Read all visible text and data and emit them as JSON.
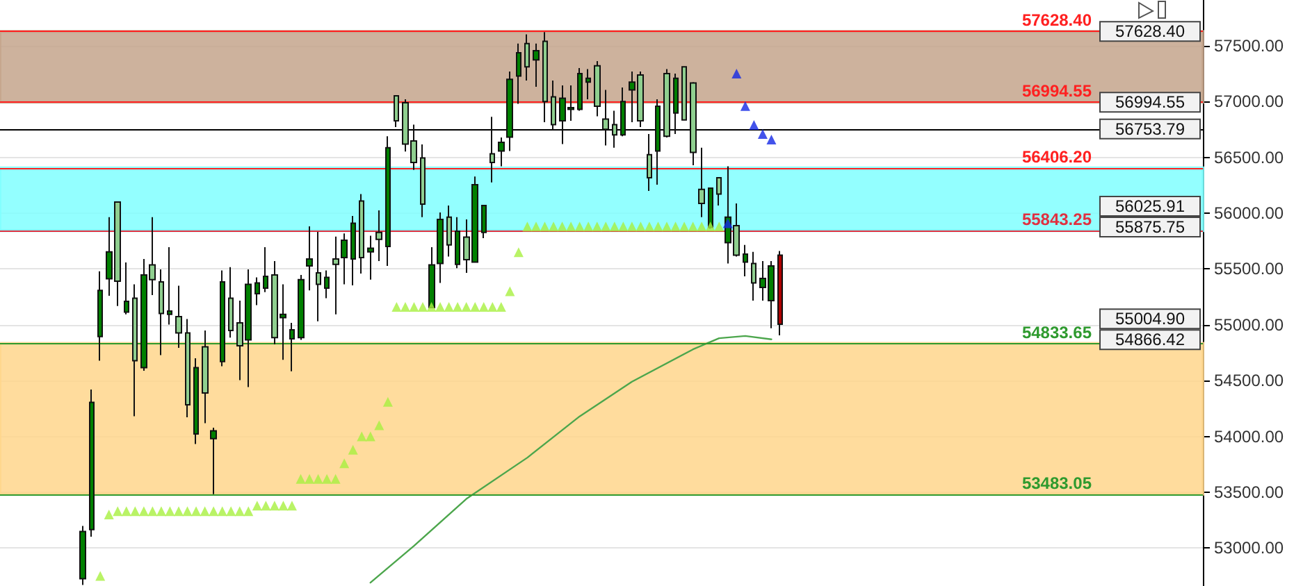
{
  "chart_data": {
    "type": "candlestick",
    "categories": [
      null,
      null,
      null,
      null,
      null,
      null,
      null,
      null,
      null,
      null,
      null,
      null,
      null,
      null,
      null,
      null,
      null,
      null,
      null,
      null,
      null,
      null,
      null,
      null,
      null,
      null,
      null,
      null,
      null,
      null,
      null,
      null,
      null,
      null,
      null,
      null,
      null,
      null,
      null,
      null,
      null,
      null,
      null,
      null,
      null,
      null,
      null,
      null,
      null,
      null,
      null,
      null,
      null,
      null,
      null,
      null,
      null,
      null,
      null,
      null,
      null,
      null,
      null,
      null,
      null,
      null,
      null,
      null,
      null,
      null,
      null,
      null,
      null,
      null,
      null,
      null,
      null,
      null,
      null,
      null,
      null,
      null,
      null,
      null,
      null,
      null,
      null,
      null,
      null,
      null,
      null,
      null,
      null,
      null,
      null,
      null,
      null,
      null,
      null,
      null,
      null,
      null,
      null,
      null,
      null,
      null,
      null,
      null,
      null,
      null,
      null,
      null,
      null,
      null,
      null,
      null,
      null,
      null,
      null,
      null,
      null,
      null,
      null,
      null,
      null,
      null,
      null,
      null,
      null,
      null,
      null,
      null,
      null,
      null,
      null,
      null,
      null,
      null
    ],
    "ohlc": [
      null,
      null,
      null,
      null,
      null,
      null,
      null,
      null,
      null,
      [
        52726,
        53198,
        52670,
        53148
      ],
      [
        53165,
        54421,
        53102,
        54305
      ],
      [
        54894,
        55479,
        54679,
        55309
      ],
      [
        55413,
        55964,
        55260,
        55653
      ],
      [
        56100,
        56100,
        55168,
        55391
      ],
      [
        55114,
        55558,
        55093,
        55210
      ],
      [
        55238,
        55363,
        54181,
        54679
      ],
      [
        54616,
        55590,
        54588,
        55446
      ],
      [
        55537,
        55964,
        55267,
        55404
      ],
      [
        55384,
        55496,
        54728,
        55102
      ],
      [
        55093,
        55695,
        55002,
        55123
      ],
      [
        55073,
        55350,
        54794,
        54927
      ],
      [
        54927,
        55052,
        54172,
        54284
      ],
      [
        54023,
        54700,
        53932,
        54616
      ],
      [
        54803,
        54949,
        54119,
        54389
      ],
      [
        53980,
        54078,
        53483,
        54050
      ],
      [
        54670,
        55487,
        54629,
        55384
      ],
      [
        55238,
        55516,
        54886,
        54949
      ],
      [
        55018,
        55217,
        54504,
        54812
      ],
      [
        54865,
        55496,
        54442,
        55363
      ],
      [
        55279,
        55425,
        55176,
        55375
      ],
      [
        55329,
        55695,
        55292,
        55434
      ],
      [
        55446,
        55571,
        54824,
        54886
      ],
      [
        55064,
        55363,
        54687,
        55093
      ],
      [
        54874,
        55018,
        54583,
        54956
      ],
      [
        54886,
        55446,
        54865,
        55404
      ],
      [
        55528,
        55882,
        55309,
        55590
      ],
      [
        55466,
        55832,
        55031,
        55363
      ],
      [
        55329,
        55487,
        55238,
        55425
      ],
      [
        55590,
        55790,
        55093,
        55541
      ],
      [
        55603,
        55819,
        55363,
        55757
      ],
      [
        55590,
        55976,
        55354,
        55910
      ],
      [
        56109,
        56171,
        55459,
        55603
      ],
      [
        55653,
        55798,
        55404,
        55686
      ],
      [
        55827,
        56026,
        55571,
        55765
      ],
      [
        55702,
        56690,
        55528,
        56586
      ],
      [
        57051,
        57051,
        56772,
        56827
      ],
      [
        56989,
        57021,
        56553,
        56619
      ],
      [
        56648,
        56793,
        56387,
        56454
      ],
      [
        56495,
        56616,
        55964,
        56081
      ],
      [
        55155,
        55695,
        55155,
        55537
      ],
      [
        55549,
        56006,
        55375,
        55944
      ],
      [
        55964,
        56068,
        55612,
        55715
      ],
      [
        55541,
        55964,
        55508,
        55839
      ],
      [
        55786,
        55944,
        55466,
        55583
      ],
      [
        55562,
        56329,
        55562,
        56255
      ],
      [
        55827,
        56068,
        55777,
        56068
      ],
      [
        56532,
        56864,
        56275,
        56454
      ],
      [
        56557,
        56678,
        56420,
        56635
      ],
      [
        56681,
        57270,
        56557,
        57200
      ],
      [
        57229,
        57519,
        56980,
        57437
      ],
      [
        57519,
        57602,
        57188,
        57312
      ],
      [
        57374,
        57519,
        57133,
        57456
      ],
      [
        57540,
        57623,
        56815,
        57001
      ],
      [
        57042,
        57188,
        56752,
        56793
      ],
      [
        56827,
        57145,
        56619,
        57030
      ],
      [
        56930,
        57145,
        56827,
        56946
      ],
      [
        56930,
        57300,
        56918,
        57250
      ],
      [
        57175,
        57291,
        57021,
        57208
      ],
      [
        57320,
        57362,
        56868,
        56959
      ],
      [
        56843,
        57104,
        56607,
        56752
      ],
      [
        56793,
        56918,
        56586,
        56702
      ],
      [
        56702,
        57126,
        56690,
        57001
      ],
      [
        57104,
        57270,
        56815,
        57175
      ],
      [
        57238,
        57270,
        56772,
        56827
      ],
      [
        56524,
        56710,
        56200,
        56317
      ],
      [
        56557,
        57021,
        56255,
        56959
      ],
      [
        57250,
        57291,
        56678,
        56690
      ],
      [
        56897,
        57250,
        56710,
        57208
      ],
      [
        57312,
        57312,
        56835,
        56835
      ],
      [
        57167,
        57175,
        56429,
        56545
      ],
      [
        56213,
        56586,
        55964,
        56088
      ],
      [
        55873,
        56225,
        55860,
        56225
      ],
      [
        56317,
        56317,
        56068,
        56171
      ],
      [
        55736,
        56420,
        55549,
        55964
      ],
      [
        55889,
        56088,
        55612,
        55624
      ],
      [
        55562,
        55715,
        55434,
        55633
      ],
      [
        55549,
        55653,
        55217,
        55375
      ],
      [
        55334,
        55571,
        55217,
        55416
      ],
      [
        55217,
        55571,
        54969,
        55528
      ],
      [
        55624,
        55661,
        54906,
        55004.9
      ],
      null,
      null,
      null,
      null,
      null,
      null,
      null,
      null,
      null,
      null,
      null,
      null,
      null,
      null,
      null,
      null,
      null,
      null,
      null,
      null,
      null,
      null,
      null,
      null,
      null,
      null,
      null,
      null,
      null,
      null,
      null,
      null,
      null,
      null,
      null,
      null,
      null,
      null,
      null,
      null,
      null,
      null,
      null,
      null,
      null,
      null,
      null,
      null
    ],
    "colors": [
      null,
      null,
      null,
      null,
      null,
      null,
      null,
      null,
      null,
      "#008000",
      "#008000",
      "#008000",
      "#008000",
      "#8fcf8f",
      "#008000",
      "#8fcf8f",
      "#008000",
      "#8fcf8f",
      "#8fcf8f",
      "#008000",
      "#8fcf8f",
      "#8fcf8f",
      "#008000",
      "#8fcf8f",
      "#008000",
      "#008000",
      "#8fcf8f",
      "#8fcf8f",
      "#008000",
      "#008000",
      "#008000",
      "#8fcf8f",
      "#008000",
      "#008000",
      "#008000",
      "#008000",
      "#8fcf8f",
      "#008000",
      "#8fcf8f",
      "#008000",
      "#008000",
      "#8fcf8f",
      "#008000",
      "#8fcf8f",
      "#008000",
      "#8fcf8f",
      "#8fcf8f",
      "#8fcf8f",
      "#8fcf8f",
      "#008000",
      "#008000",
      "#8fcf8f",
      "#008000",
      "#8fcf8f",
      "#008000",
      "#008000",
      "#8fcf8f",
      "#008000",
      "#008000",
      "#008000",
      "#8fcf8f",
      "#008000",
      "#8fcf8f",
      "#8fcf8f",
      "#008000",
      "#008000",
      "#008000",
      "#008000",
      "#8fcf8f",
      "#8fcf8f",
      "#8fcf8f",
      "#008000",
      "#008000",
      "#8fcf8f",
      "#8fcf8f",
      "#008000",
      "#8fcf8f",
      "#008000",
      "#8fcf8f",
      "#8fcf8f",
      "#8fcf8f",
      "#008000",
      "#8fcf8f",
      "#008000",
      "#8fcf8f",
      "#008000",
      "#8fcf8f",
      "#008000",
      "#008000",
      "#b00000",
      null,
      null,
      null,
      null,
      null,
      null,
      null,
      null,
      null,
      null,
      null,
      null,
      null,
      null,
      null,
      null,
      null,
      null,
      null,
      null,
      null,
      null,
      null,
      null,
      null,
      null,
      null,
      null,
      null,
      null,
      null,
      null,
      null,
      null,
      null,
      null,
      null,
      null,
      null,
      null,
      null,
      null,
      null,
      null,
      null,
      null,
      null,
      null
    ],
    "series": [
      {
        "type": "scatter",
        "color": "#a8f040",
        "marker": "triangle",
        "values": [
          null,
          null,
          null,
          null,
          null,
          null,
          null,
          null,
          null,
          null,
          null,
          52750,
          53300,
          53330,
          53330,
          53330,
          53330,
          53330,
          53330,
          53330,
          53330,
          53330,
          53330,
          53330,
          53330,
          53330,
          53330,
          53330,
          53330,
          53380,
          53380,
          53380,
          53380,
          53380,
          53620,
          53620,
          53620,
          53620,
          53620,
          53760,
          53880,
          54000,
          54000,
          54100,
          54310,
          55160,
          55160,
          55160,
          55160,
          55160,
          55160,
          55160,
          55160,
          55160,
          55160,
          55160,
          55160,
          55160,
          55300,
          55650,
          55880,
          55880,
          55880,
          55880,
          55880,
          55880,
          55880,
          55880,
          55880,
          55880,
          55880,
          55880,
          55880,
          55880,
          55880,
          55880,
          55880,
          55880,
          55880,
          55880,
          55880,
          55880,
          55880,
          null,
          null,
          null,
          null,
          null,
          null,
          null,
          null,
          null,
          null,
          null,
          null,
          null,
          null,
          null,
          null,
          null,
          null,
          null,
          null,
          null,
          null,
          null,
          null,
          null,
          null,
          null,
          null,
          null,
          null,
          null,
          null,
          null,
          null,
          null,
          null,
          null,
          null,
          null,
          null,
          null,
          null,
          null,
          null,
          null,
          null,
          null,
          null,
          null,
          null,
          null,
          null,
          null,
          null,
          null
        ]
      },
      {
        "type": "scatter",
        "color": "#1428e6",
        "marker": "triangle",
        "values": [
          null,
          null,
          null,
          null,
          null,
          null,
          null,
          null,
          null,
          null,
          null,
          null,
          null,
          null,
          null,
          null,
          null,
          null,
          null,
          null,
          null,
          null,
          null,
          null,
          null,
          null,
          null,
          null,
          null,
          null,
          null,
          null,
          null,
          null,
          null,
          null,
          null,
          null,
          null,
          null,
          null,
          null,
          null,
          null,
          null,
          null,
          null,
          null,
          null,
          null,
          null,
          null,
          null,
          null,
          null,
          null,
          null,
          null,
          null,
          null,
          null,
          null,
          null,
          null,
          null,
          null,
          null,
          null,
          null,
          null,
          null,
          null,
          null,
          null,
          null,
          null,
          null,
          null,
          null,
          null,
          null,
          null,
          null,
          55910,
          57250,
          56960,
          56790,
          56710,
          56660,
          null,
          null,
          null,
          null,
          null,
          null,
          null,
          null,
          null,
          null,
          null,
          null,
          null,
          null,
          null,
          null,
          null,
          null,
          null,
          null,
          null,
          null,
          null,
          null,
          null,
          null,
          null,
          null,
          null,
          null,
          null,
          null,
          null,
          null,
          null,
          null,
          null,
          null,
          null,
          null,
          null,
          null,
          null,
          null,
          null,
          null,
          null,
          null,
          null
        ]
      },
      {
        "type": "line",
        "color": "#4ca64c",
        "marker": "none",
        "values": [
          null,
          null,
          null,
          null,
          null,
          null,
          null,
          null,
          null,
          null,
          null,
          null,
          null,
          null,
          null,
          null,
          null,
          null,
          null,
          null,
          null,
          null,
          null,
          null,
          null,
          null,
          null,
          null,
          null,
          null,
          null,
          null,
          null,
          null,
          null,
          null,
          null,
          null,
          null,
          null,
          null,
          null,
          52690,
          null,
          null,
          null,
          null,
          53020,
          null,
          null,
          null,
          null,
          null,
          53440,
          null,
          null,
          null,
          null,
          null,
          null,
          53810,
          null,
          null,
          null,
          null,
          null,
          54180,
          null,
          null,
          null,
          null,
          null,
          54490,
          null,
          null,
          null,
          null,
          null,
          null,
          54780,
          null,
          null,
          54880,
          null,
          null,
          54900,
          null,
          null,
          54870,
          null,
          null,
          null,
          null,
          null,
          null,
          null,
          null,
          null,
          null,
          null,
          null,
          null,
          null,
          null,
          null,
          null,
          null,
          null,
          null,
          null,
          null,
          null,
          null,
          null,
          null,
          null,
          null,
          null,
          null,
          null,
          null,
          null,
          null,
          null,
          null,
          null,
          null,
          null,
          null,
          null,
          null,
          null,
          null,
          null,
          null,
          null,
          null,
          null
        ]
      }
    ],
    "ylim": [
      52660,
      57910
    ],
    "yticks": [
      {
        "value": 53000,
        "label": "53000.00"
      },
      {
        "value": 53500,
        "label": "53500.00"
      },
      {
        "value": 54000,
        "label": "54000.00"
      },
      {
        "value": 54500,
        "label": "54500.00"
      },
      {
        "value": 55000,
        "label": "55000.00"
      },
      {
        "value": 55500,
        "label": "55500.00"
      },
      {
        "value": 56000,
        "label": "56000.00"
      },
      {
        "value": 56500,
        "label": "56500.00"
      },
      {
        "value": 57000,
        "label": "57000.00"
      },
      {
        "value": 57500,
        "label": "57500.00"
      }
    ],
    "tick_labels": "y",
    "grid": "y",
    "bands": [
      {
        "axis": "y",
        "from": 56994.55,
        "to": 57628.4,
        "color": "#c4a48c"
      },
      {
        "axis": "y",
        "from": 55843.25,
        "to": 56406.2,
        "color": "#80ffff"
      },
      {
        "axis": "y",
        "from": 53483.05,
        "to": 54833.65,
        "color": "#ffd68c"
      }
    ],
    "ref_lines": [
      {
        "axis": "y",
        "value": 56753.79,
        "color": "#000000"
      },
      {
        "axis": "y",
        "value": 57628.4,
        "label": "57628.40",
        "color": "#ff2020"
      },
      {
        "axis": "y",
        "value": 56994.55,
        "label": "56994.55",
        "color": "#ff2020"
      },
      {
        "axis": "y",
        "value": 56406.2,
        "label": "56406.20",
        "color": "#ff2020"
      },
      {
        "axis": "y",
        "value": 55843.25,
        "label": "55843.25",
        "color": "#e03040"
      },
      {
        "axis": "y",
        "value": 54833.65,
        "label": "54833.65",
        "color": "#2e9a2e"
      },
      {
        "axis": "y",
        "value": 53483.05,
        "label": "53483.05",
        "color": "#2e9a2e"
      }
    ],
    "annotations": [
      {
        "text": "57628.40",
        "y": 57628.4
      },
      {
        "text": "56994.55",
        "y": 56994.55
      },
      {
        "text": "56753.79",
        "y": 56753.79
      },
      "56025.91",
      {
        "text": "55875.75",
        "y": 55875.75
      },
      "55004.90",
      {
        "text": "54866.42",
        "y": 54866.42
      }
    ]
  }
}
